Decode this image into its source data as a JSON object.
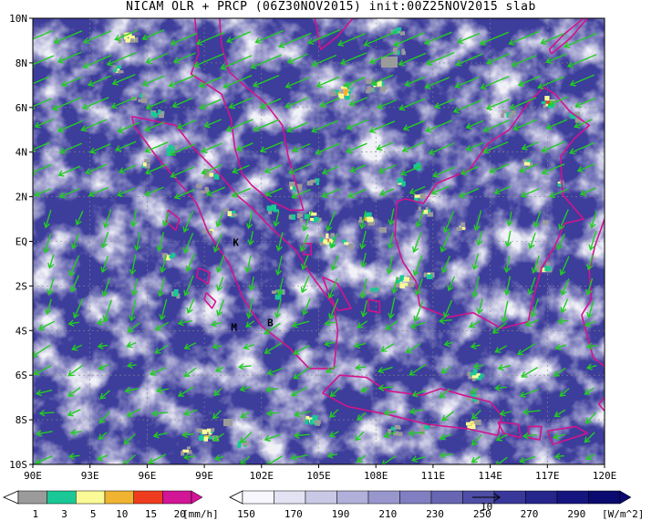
{
  "title": "NICAM OLR + PRCP (06Z30NOV2015) init:00Z25NOV2015 slab",
  "map": {
    "lon_labels": [
      "90E",
      "93E",
      "96E",
      "99E",
      "102E",
      "105E",
      "108E",
      "111E",
      "114E",
      "117E",
      "120E"
    ],
    "lat_labels": [
      "10N",
      "8N",
      "6N",
      "4N",
      "2N",
      "EQ",
      "2S",
      "4S",
      "6S",
      "8S",
      "10S"
    ],
    "station_labels": [
      {
        "id": "K",
        "lon": 100.5,
        "lat": -0.2
      },
      {
        "id": "B",
        "lon": 102.3,
        "lat": -3.8
      },
      {
        "id": "M",
        "lon": 100.4,
        "lat": -4.0
      }
    ],
    "coast_color": "#d2148c",
    "wind_color": "#22cc22",
    "olr_base_color": "#3d3d9c",
    "reference_vector": "10"
  },
  "precip_colorbar": {
    "ticks": [
      "1",
      "3",
      "5",
      "10",
      "15",
      "20"
    ],
    "unit": "[mm/h]",
    "colors": [
      "#9b9b9b",
      "#19c896",
      "#fafa96",
      "#f0b432",
      "#f03c1e",
      "#d21496"
    ]
  },
  "olr_colorbar": {
    "ticks": [
      "150",
      "170",
      "190",
      "210",
      "230",
      "250",
      "270",
      "290"
    ],
    "unit": "[W/m^2]",
    "colors": [
      "#f6f6fc",
      "#e2e2f2",
      "#c9c9e6",
      "#b0b0da",
      "#9797cd",
      "#7f7fc1",
      "#6666b3",
      "#4e4ea6",
      "#38389a",
      "#25258c",
      "#151580",
      "#0a0a70"
    ]
  }
}
